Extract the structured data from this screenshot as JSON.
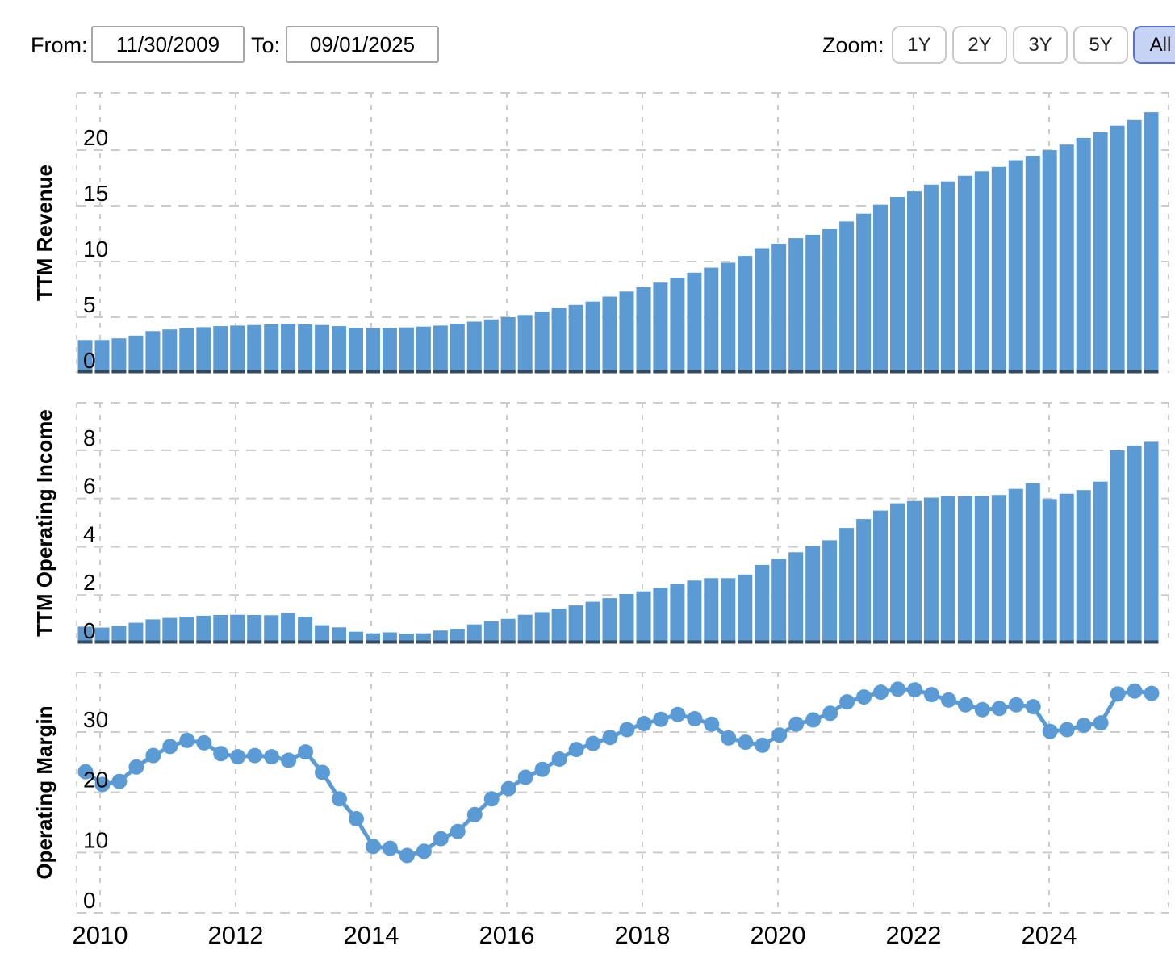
{
  "toolbar": {
    "from_label": "From:",
    "from_value": "11/30/2009",
    "to_label": "To:",
    "to_value": "09/01/2025",
    "zoom_label": "Zoom:",
    "zoom_buttons": [
      {
        "label": "1Y",
        "active": false
      },
      {
        "label": "2Y",
        "active": false
      },
      {
        "label": "3Y",
        "active": false
      },
      {
        "label": "5Y",
        "active": false
      },
      {
        "label": "All",
        "active": true
      }
    ]
  },
  "colors": {
    "bar_fill": "#5b9ad2",
    "bar_base_cap": "#33495e",
    "line": "#5b9bd5",
    "marker": "#5b9bd5",
    "grid": "#cccccc",
    "axis_text": "#000000",
    "active_zoom_bg": "#c7d3f5",
    "active_zoom_border": "#5871d8"
  },
  "x_axis": {
    "year_labels": [
      "2010",
      "2012",
      "2014",
      "2016",
      "2018",
      "2020",
      "2022",
      "2024"
    ]
  },
  "chart_data": [
    {
      "type": "bar",
      "name": "ttm-revenue",
      "ylabel": "TTM Revenue",
      "xlabel": "",
      "x_start": "2009-Q4",
      "x_freq": "quarterly",
      "grid": true,
      "ylim": [
        0,
        25.15
      ],
      "yticks": [
        0,
        5,
        10,
        15,
        20
      ],
      "values": [
        2.95,
        2.95,
        3.1,
        3.35,
        3.75,
        3.9,
        4.0,
        4.1,
        4.2,
        4.25,
        4.3,
        4.35,
        4.4,
        4.35,
        4.3,
        4.2,
        4.06,
        4.0,
        4.03,
        4.08,
        4.15,
        4.25,
        4.4,
        4.6,
        4.8,
        5.0,
        5.2,
        5.5,
        5.85,
        6.1,
        6.4,
        6.85,
        7.3,
        7.7,
        8.1,
        8.55,
        9.0,
        9.45,
        9.9,
        10.5,
        11.2,
        11.6,
        12.1,
        12.4,
        12.9,
        13.6,
        14.3,
        15.1,
        15.8,
        16.3,
        16.9,
        17.2,
        17.7,
        18.1,
        18.5,
        19.1,
        19.5,
        20.0,
        20.5,
        21.1,
        21.6,
        22.2,
        22.7,
        23.4
      ]
    },
    {
      "type": "bar",
      "name": "ttm-operating-income",
      "ylabel": "TTM Operating Income",
      "xlabel": "",
      "x_start": "2009-Q4",
      "x_freq": "quarterly",
      "grid": true,
      "ylim": [
        0,
        9.97
      ],
      "yticks": [
        0,
        2,
        4,
        6,
        8
      ],
      "values": [
        0.69,
        0.65,
        0.72,
        0.85,
        0.99,
        1.05,
        1.1,
        1.14,
        1.17,
        1.18,
        1.17,
        1.16,
        1.25,
        1.1,
        0.75,
        0.66,
        0.48,
        0.41,
        0.45,
        0.4,
        0.41,
        0.53,
        0.6,
        0.78,
        0.91,
        1.01,
        1.18,
        1.29,
        1.43,
        1.57,
        1.72,
        1.87,
        2.04,
        2.15,
        2.3,
        2.45,
        2.6,
        2.7,
        2.7,
        2.85,
        3.25,
        3.5,
        3.77,
        4.03,
        4.27,
        4.78,
        5.15,
        5.5,
        5.8,
        5.9,
        6.04,
        6.1,
        6.1,
        6.1,
        6.15,
        6.4,
        6.63,
        5.98,
        6.2,
        6.35,
        6.7,
        8.0,
        8.2,
        8.35
      ]
    },
    {
      "type": "line",
      "name": "operating-margin",
      "ylabel": "Operating Margin",
      "xlabel": "",
      "x_start": "2009-Q4",
      "x_freq": "quarterly",
      "grid": true,
      "ylim": [
        0,
        39.9
      ],
      "yticks": [
        0,
        10,
        20,
        30
      ],
      "values": [
        23.4,
        21.3,
        21.8,
        24.2,
        26.1,
        27.6,
        28.6,
        28.2,
        26.4,
        25.9,
        26.1,
        25.9,
        25.3,
        26.7,
        23.3,
        18.9,
        15.6,
        11.0,
        10.7,
        9.5,
        10.2,
        12.3,
        13.5,
        16.3,
        18.9,
        20.6,
        22.5,
        23.8,
        25.5,
        27.1,
        28.1,
        29.1,
        30.4,
        31.4,
        32.1,
        32.9,
        32.2,
        31.3,
        29.0,
        28.3,
        27.8,
        29.5,
        31.3,
        32.0,
        33.1,
        35.0,
        35.8,
        36.6,
        37.1,
        37.0,
        36.2,
        35.3,
        34.5,
        33.7,
        33.9,
        34.5,
        34.2,
        30.1,
        30.4,
        31.1,
        31.5,
        36.3,
        36.8,
        36.4
      ]
    }
  ]
}
